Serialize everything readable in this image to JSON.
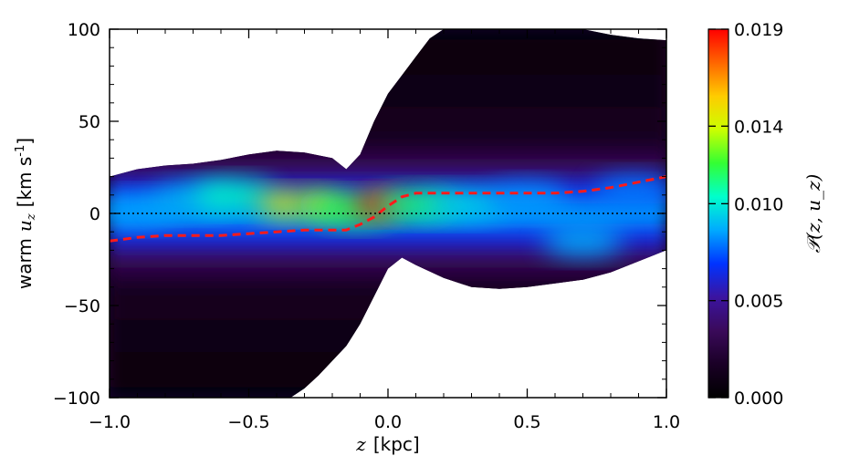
{
  "chart_data": {
    "type": "heatmap",
    "title": "",
    "xlabel_var": "z",
    "xlabel_unit": "[kpc]",
    "ylabel_prefix": "warm",
    "ylabel_var": "u",
    "ylabel_sub": "z",
    "ylabel_unit_open": "[km s",
    "ylabel_unit_exp": "-1",
    "ylabel_unit_close": "]",
    "colorbar_label": "𝒫(z, u_z)",
    "xlim": [
      -1.0,
      1.0
    ],
    "ylim": [
      -100,
      100
    ],
    "x_ticks": [
      {
        "value": -1.0,
        "label": "−1.0"
      },
      {
        "value": -0.5,
        "label": "−0.5"
      },
      {
        "value": 0.0,
        "label": "0.0"
      },
      {
        "value": 0.5,
        "label": "0.5"
      },
      {
        "value": 1.0,
        "label": "1.0"
      }
    ],
    "y_ticks": [
      {
        "value": -100,
        "label": "−100"
      },
      {
        "value": -50,
        "label": "−50"
      },
      {
        "value": 0,
        "label": "0"
      },
      {
        "value": 50,
        "label": "50"
      },
      {
        "value": 100,
        "label": "100"
      }
    ],
    "colorbar_range": [
      0.0,
      0.019
    ],
    "colorbar_ticks": [
      {
        "value": 0.0,
        "label": "0.000"
      },
      {
        "value": 0.005,
        "label": "0.005"
      },
      {
        "value": 0.01,
        "label": "0.010"
      },
      {
        "value": 0.014,
        "label": "0.014"
      },
      {
        "value": 0.019,
        "label": "0.019"
      }
    ],
    "colormap": [
      "#000000",
      "#1a0026",
      "#3a0a5a",
      "#3b14a0",
      "#0033ff",
      "#00aaff",
      "#00ffcc",
      "#33ff33",
      "#ccff00",
      "#ffcc00",
      "#ff6600",
      "#ff0000"
    ],
    "support_upper": {
      "x": [
        -1.0,
        -0.9,
        -0.8,
        -0.7,
        -0.6,
        -0.5,
        -0.4,
        -0.3,
        -0.2,
        -0.15,
        -0.1,
        -0.05,
        0.0,
        0.05,
        0.1,
        0.15,
        0.2,
        0.3,
        0.4,
        0.5,
        0.6,
        0.7,
        0.8,
        0.9,
        1.0
      ],
      "y": [
        20,
        24,
        26,
        27,
        29,
        32,
        34,
        33,
        30,
        24,
        32,
        50,
        65,
        75,
        85,
        95,
        100,
        100,
        100,
        100,
        100,
        100,
        97,
        95,
        94
      ]
    },
    "support_lower": {
      "x": [
        -1.0,
        -0.9,
        -0.8,
        -0.7,
        -0.6,
        -0.5,
        -0.4,
        -0.35,
        -0.3,
        -0.25,
        -0.2,
        -0.15,
        -0.1,
        -0.05,
        0.0,
        0.05,
        0.1,
        0.2,
        0.3,
        0.4,
        0.5,
        0.6,
        0.7,
        0.8,
        0.9,
        1.0
      ],
      "y": [
        -100,
        -100,
        -100,
        -100,
        -100,
        -100,
        -100,
        -100,
        -95,
        -88,
        -80,
        -72,
        -60,
        -45,
        -30,
        -24,
        -28,
        -35,
        -40,
        -41,
        -40,
        -38,
        -36,
        -32,
        -26,
        -20
      ]
    },
    "hotspots": [
      {
        "x": -0.9,
        "y": 2,
        "v": 0.0085
      },
      {
        "x": -0.7,
        "y": 8,
        "v": 0.009
      },
      {
        "x": -0.55,
        "y": 10,
        "v": 0.0105
      },
      {
        "x": -0.38,
        "y": 5,
        "v": 0.0145
      },
      {
        "x": -0.25,
        "y": 5,
        "v": 0.0135
      },
      {
        "x": -0.12,
        "y": 2,
        "v": 0.012
      },
      {
        "x": -0.03,
        "y": 5,
        "v": 0.019
      },
      {
        "x": 0.1,
        "y": 5,
        "v": 0.0115
      },
      {
        "x": 0.28,
        "y": 5,
        "v": 0.0095
      },
      {
        "x": 0.5,
        "y": 8,
        "v": 0.0085
      },
      {
        "x": 0.7,
        "y": -15,
        "v": 0.0088
      },
      {
        "x": 0.88,
        "y": 12,
        "v": 0.008
      }
    ],
    "series": [
      {
        "style": "dashed-red",
        "x": [
          -1.0,
          -0.9,
          -0.8,
          -0.7,
          -0.6,
          -0.5,
          -0.4,
          -0.3,
          -0.2,
          -0.15,
          -0.1,
          -0.05,
          0.0,
          0.05,
          0.1,
          0.2,
          0.3,
          0.4,
          0.5,
          0.6,
          0.7,
          0.8,
          0.9,
          1.0
        ],
        "y": [
          -15,
          -13,
          -12,
          -12,
          -12,
          -11,
          -10,
          -9,
          -9,
          -9,
          -6,
          -2,
          4,
          9,
          11,
          11,
          11,
          11,
          11,
          11,
          12,
          14,
          17,
          20
        ]
      },
      {
        "style": "dotted-black",
        "x": [
          -1.0,
          1.0
        ],
        "y": [
          0,
          0
        ]
      }
    ]
  }
}
